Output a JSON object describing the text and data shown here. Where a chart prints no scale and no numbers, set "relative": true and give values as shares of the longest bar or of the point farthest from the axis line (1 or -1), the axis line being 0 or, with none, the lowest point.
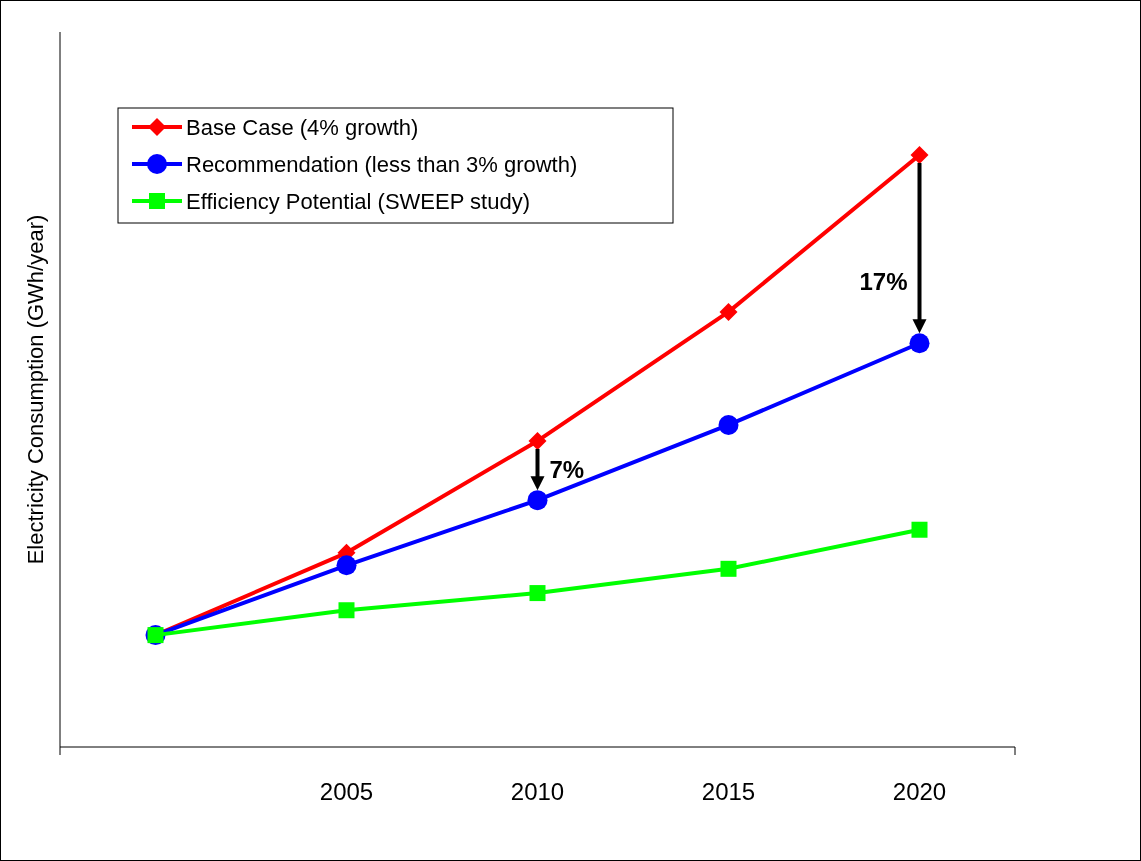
{
  "chart_data": {
    "type": "line",
    "relative": true,
    "ylabel": "Electricity Consumption (GWh/year)",
    "categories": [
      null,
      "2005",
      "2010",
      "2015",
      "2020"
    ],
    "legend": "top left",
    "series": [
      {
        "name": "Base Case (4% growth)",
        "color": "#ff0000",
        "marker": "diamond",
        "values": [
          0.189,
          0.328,
          0.517,
          0.735,
          1
        ]
      },
      {
        "name": "Recommendation (less than 3% growth)",
        "color": "#0000ff",
        "marker": "circle",
        "values": [
          0.189,
          0.307,
          0.417,
          0.544,
          0.682
        ]
      },
      {
        "name": "Efficiency Potential (SWEEP study)",
        "color": "#00ff00",
        "marker": "square",
        "values": [
          0.189,
          0.231,
          0.26,
          0.301,
          0.367
        ]
      }
    ],
    "annotations": [
      {
        "text": "7%",
        "x": "2010",
        "y": 0.417
      },
      {
        "text": "17%",
        "x": "2020",
        "y": 0.682
      }
    ]
  }
}
